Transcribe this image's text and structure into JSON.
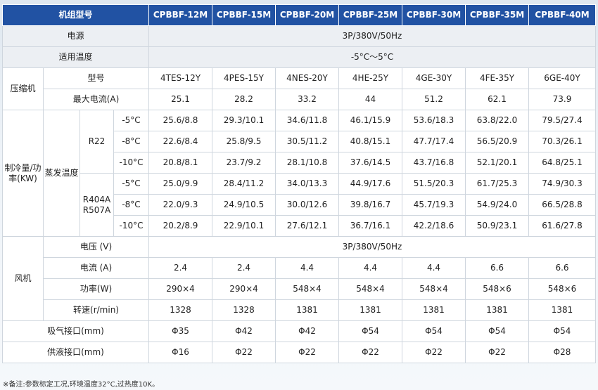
{
  "header": {
    "label": "机组型号",
    "models": [
      "CPBBF-12M",
      "CPBBF-15M",
      "CPBBF-20M",
      "CPBBF-25M",
      "CPBBF-30M",
      "CPBBF-35M",
      "CPBBF-40M"
    ]
  },
  "power": {
    "label": "电源",
    "value": "3P/380V/50Hz"
  },
  "temp_range": {
    "label": "适用温度",
    "value": "-5°C～5°C"
  },
  "compressor": {
    "group_label": "压缩机",
    "model_label": "型号",
    "models": [
      "4TES-12Y",
      "4PES-15Y",
      "4NES-20Y",
      "4HE-25Y",
      "4GE-30Y",
      "4FE-35Y",
      "6GE-40Y"
    ],
    "current_label": "最大电流(A)",
    "currents": [
      "25.1",
      "28.2",
      "33.2",
      "44",
      "51.2",
      "62.1",
      "73.9"
    ]
  },
  "capacity": {
    "group_label": "制冷量/功率(KW)",
    "evap_label": "蒸发温度",
    "refrigerants": [
      {
        "name": "R22",
        "rows": [
          {
            "temp": "-5°C",
            "values": [
              "25.6/8.8",
              "29.3/10.1",
              "34.6/11.8",
              "46.1/15.9",
              "53.6/18.3",
              "63.8/22.0",
              "79.5/27.4"
            ]
          },
          {
            "temp": "-8°C",
            "values": [
              "22.6/8.4",
              "25.8/9.5",
              "30.5/11.2",
              "40.8/15.1",
              "47.7/17.4",
              "56.5/20.9",
              "70.3/26.1"
            ]
          },
          {
            "temp": "-10°C",
            "values": [
              "20.8/8.1",
              "23.7/9.2",
              "28.1/10.8",
              "37.6/14.5",
              "43.7/16.8",
              "52.1/20.1",
              "64.8/25.1"
            ]
          }
        ]
      },
      {
        "name": "R404A R507A",
        "rows": [
          {
            "temp": "-5°C",
            "values": [
              "25.0/9.9",
              "28.4/11.2",
              "34.0/13.3",
              "44.9/17.6",
              "51.5/20.3",
              "61.7/25.3",
              "74.9/30.3"
            ]
          },
          {
            "temp": "-8°C",
            "values": [
              "22.0/9.3",
              "24.9/10.5",
              "30.0/12.6",
              "39.8/16.7",
              "45.7/19.3",
              "54.9/24.0",
              "66.5/28.8"
            ]
          },
          {
            "temp": "-10°C",
            "values": [
              "20.2/8.9",
              "22.9/10.1",
              "27.6/12.1",
              "36.7/16.1",
              "42.2/18.6",
              "50.9/23.1",
              "61.6/27.8"
            ]
          }
        ]
      }
    ]
  },
  "fan": {
    "group_label": "风机",
    "voltage_label": "电压 (V)",
    "voltage": "3P/380V/50Hz",
    "current_label": "电流 (A)",
    "currents": [
      "2.4",
      "2.4",
      "4.4",
      "4.4",
      "4.4",
      "6.6",
      "6.6"
    ],
    "power_label": "功率(W)",
    "powers": [
      "290×4",
      "290×4",
      "548×4",
      "548×4",
      "548×4",
      "548×6",
      "548×6"
    ],
    "speed_label": "转速(r/min)",
    "speeds": [
      "1328",
      "1328",
      "1381",
      "1381",
      "1381",
      "1381",
      "1381"
    ]
  },
  "suction": {
    "label": "吸气接口(mm)",
    "values": [
      "Φ35",
      "Φ42",
      "Φ42",
      "Φ54",
      "Φ54",
      "Φ54",
      "Φ54"
    ]
  },
  "liquid": {
    "label": "供液接口(mm)",
    "values": [
      "Φ16",
      "Φ22",
      "Φ22",
      "Φ22",
      "Φ22",
      "Φ22",
      "Φ28"
    ]
  },
  "note": "※备注:参数标定工况,环境温度32°C,过热度10K。"
}
